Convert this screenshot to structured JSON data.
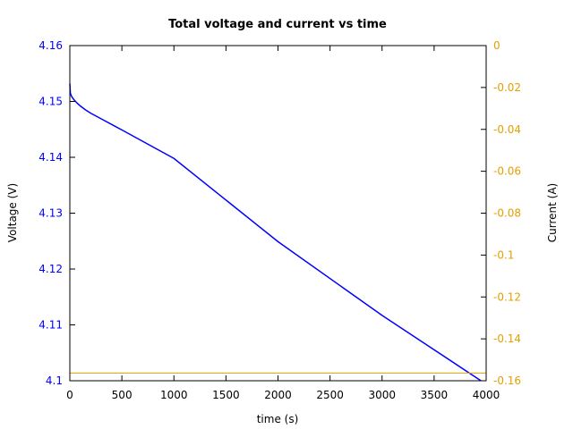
{
  "chart_data": {
    "type": "line",
    "title": "Total voltage and current vs time",
    "xlabel": "time (s)",
    "ylabel": "Voltage (V)",
    "y2label": "Current (A)",
    "xlim": [
      0,
      4000
    ],
    "ylim": [
      4.1,
      4.16
    ],
    "y2lim": [
      -0.16,
      0
    ],
    "grid": false,
    "xticks": [
      "0",
      "500",
      "1000",
      "1500",
      "2000",
      "2500",
      "3000",
      "3500",
      "4000"
    ],
    "yticks": [
      "4.1",
      "4.11",
      "4.12",
      "4.13",
      "4.14",
      "4.15",
      "4.16"
    ],
    "y2ticks": [
      "0",
      "-0.02",
      "-0.04",
      "-0.06",
      "-0.08",
      "-0.1",
      "-0.12",
      "-0.14",
      "-0.16"
    ],
    "series": [
      {
        "axis": "left",
        "color": "#0000ff",
        "x": [
          0,
          5,
          10,
          20,
          40,
          70,
          100,
          150,
          200,
          300,
          500,
          1000,
          2000,
          3000,
          3950
        ],
        "y": [
          4.1532,
          4.1515,
          4.1512,
          4.1508,
          4.1503,
          4.1497,
          4.1492,
          4.1485,
          4.1479,
          4.1469,
          4.1449,
          4.1398,
          4.1249,
          4.1117,
          4.1
        ]
      },
      {
        "axis": "right",
        "color": "#e5a000",
        "x": [
          0,
          4000
        ],
        "y": [
          -0.1563,
          -0.1563
        ]
      }
    ]
  }
}
